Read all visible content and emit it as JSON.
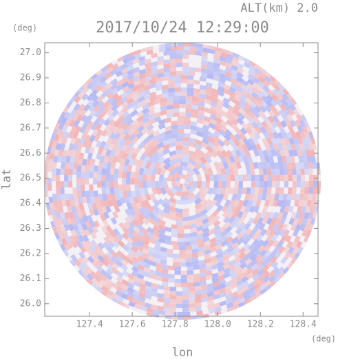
{
  "chart_data": {
    "type": "radar-ppi",
    "title": "2017/10/24 12:29:00",
    "subtitle": "ALT(km) 2.0",
    "x_label": "lon",
    "y_label": "lat",
    "x_unit": "(deg)",
    "y_unit": "(deg)",
    "xlim": [
      127.19,
      128.47
    ],
    "ylim": [
      25.95,
      27.04
    ],
    "xticks": [
      127.4,
      127.6,
      127.8,
      {
        "value": 128,
        "label": "128.0"
      },
      128.2,
      128.4
    ],
    "yticks": [
      {
        "value": 26,
        "label": "26.0"
      },
      26.1,
      26.2,
      26.3,
      26.4,
      26.5,
      26.6,
      26.7,
      26.8,
      26.9,
      {
        "value": 27,
        "label": "27.0"
      }
    ]
  }
}
